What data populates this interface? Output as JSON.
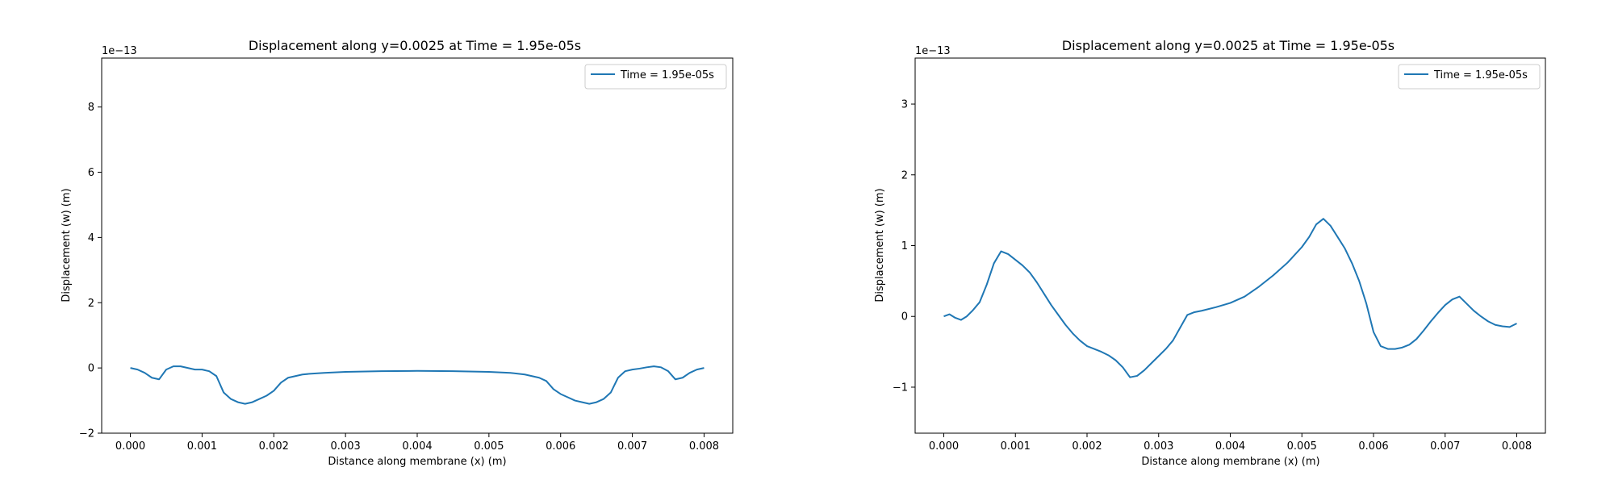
{
  "line_color": "#1f77b4",
  "chart_data": [
    {
      "type": "line",
      "title": "Displacement along y=0.0025 at Time = 1.95e-05s",
      "xlabel": "Distance along membrane (x) (m)",
      "ylabel": "Displacement (w) (m)",
      "y_offset_label": "1e−13",
      "xlim": [
        -0.0004,
        0.0084
      ],
      "ylim": [
        -2.0,
        9.5
      ],
      "xticks": [
        0.0,
        0.001,
        0.002,
        0.003,
        0.004,
        0.005,
        0.006,
        0.007,
        0.008
      ],
      "xtick_labels": [
        "0.000",
        "0.001",
        "0.002",
        "0.003",
        "0.004",
        "0.005",
        "0.006",
        "0.007",
        "0.008"
      ],
      "yticks": [
        -2,
        0,
        2,
        4,
        6,
        8
      ],
      "ytick_labels": [
        "−2",
        "0",
        "2",
        "4",
        "6",
        "8"
      ],
      "legend_position": "upper right",
      "series": [
        {
          "name": "Time = 1.95e-05s",
          "x": [
            0.0,
            0.0001,
            0.0002,
            0.0003,
            0.0004,
            0.0005,
            0.0006,
            0.0007,
            0.0008,
            0.0009,
            0.001,
            0.0011,
            0.0012,
            0.0013,
            0.0014,
            0.0015,
            0.0016,
            0.0017,
            0.0018,
            0.0019,
            0.002,
            0.0021,
            0.0022,
            0.0023,
            0.0024,
            0.0025,
            0.0027,
            0.003,
            0.0035,
            0.004,
            0.0045,
            0.005,
            0.0053,
            0.0055,
            0.0056,
            0.0057,
            0.0058,
            0.0059,
            0.006,
            0.0061,
            0.0062,
            0.0063,
            0.0064,
            0.0065,
            0.0066,
            0.0067,
            0.0068,
            0.0069,
            0.007,
            0.0071,
            0.0072,
            0.0073,
            0.0074,
            0.0075,
            0.0076,
            0.0077,
            0.0078,
            0.0079,
            0.008
          ],
          "y": [
            0.0,
            -0.05,
            -0.15,
            -0.3,
            -0.35,
            -0.05,
            0.05,
            0.05,
            0.0,
            -0.05,
            -0.05,
            -0.1,
            -0.25,
            -0.75,
            -0.95,
            -1.05,
            -1.1,
            -1.05,
            -0.95,
            -0.85,
            -0.7,
            -0.45,
            -0.3,
            -0.25,
            -0.2,
            -0.18,
            -0.15,
            -0.12,
            -0.1,
            -0.09,
            -0.1,
            -0.12,
            -0.15,
            -0.2,
            -0.25,
            -0.3,
            -0.4,
            -0.65,
            -0.8,
            -0.9,
            -1.0,
            -1.05,
            -1.1,
            -1.05,
            -0.95,
            -0.75,
            -0.3,
            -0.1,
            -0.05,
            -0.02,
            0.02,
            0.05,
            0.02,
            -0.1,
            -0.35,
            -0.3,
            -0.15,
            -0.05,
            0.0
          ]
        }
      ]
    },
    {
      "type": "line",
      "title": "Displacement along y=0.0025 at Time = 1.95e-05s",
      "xlabel": "Distance along membrane (x) (m)",
      "ylabel": "Displacement (w) (m)",
      "y_offset_label": "1e−13",
      "xlim": [
        -0.0004,
        0.0084
      ],
      "ylim": [
        -1.65,
        3.65
      ],
      "xticks": [
        0.0,
        0.001,
        0.002,
        0.003,
        0.004,
        0.005,
        0.006,
        0.007,
        0.008
      ],
      "xtick_labels": [
        "0.000",
        "0.001",
        "0.002",
        "0.003",
        "0.004",
        "0.005",
        "0.006",
        "0.007",
        "0.008"
      ],
      "yticks": [
        -1,
        0,
        1,
        2,
        3
      ],
      "ytick_labels": [
        "−1",
        "0",
        "1",
        "2",
        "3"
      ],
      "legend_position": "upper right",
      "series": [
        {
          "name": "Time = 1.95e-05s",
          "x": [
            0.0,
            8e-05,
            0.00016,
            0.00024,
            0.00032,
            0.0004,
            0.0005,
            0.0006,
            0.0007,
            0.0008,
            0.0009,
            0.001,
            0.0011,
            0.0012,
            0.0013,
            0.0014,
            0.0015,
            0.0016,
            0.0017,
            0.0018,
            0.0019,
            0.002,
            0.0021,
            0.0022,
            0.0023,
            0.0024,
            0.0025,
            0.0026,
            0.0027,
            0.0028,
            0.0029,
            0.003,
            0.0031,
            0.0032,
            0.0033,
            0.0034,
            0.0035,
            0.0036,
            0.0038,
            0.004,
            0.0042,
            0.0044,
            0.0046,
            0.0048,
            0.005,
            0.0051,
            0.0052,
            0.0053,
            0.0054,
            0.0055,
            0.0056,
            0.0057,
            0.0058,
            0.0059,
            0.006,
            0.0061,
            0.0062,
            0.0063,
            0.0064,
            0.0065,
            0.0066,
            0.0067,
            0.0068,
            0.0069,
            0.007,
            0.0071,
            0.0072,
            0.0073,
            0.0074,
            0.0075,
            0.0076,
            0.0077,
            0.0078,
            0.0079,
            0.008
          ],
          "y": [
            0.0,
            0.03,
            -0.02,
            -0.05,
            0.0,
            0.08,
            0.2,
            0.45,
            0.75,
            0.92,
            0.88,
            0.8,
            0.72,
            0.62,
            0.48,
            0.32,
            0.16,
            0.02,
            -0.12,
            -0.24,
            -0.34,
            -0.42,
            -0.46,
            -0.5,
            -0.55,
            -0.62,
            -0.72,
            -0.86,
            -0.84,
            -0.76,
            -0.66,
            -0.56,
            -0.46,
            -0.34,
            -0.16,
            0.02,
            0.06,
            0.08,
            0.13,
            0.19,
            0.28,
            0.42,
            0.58,
            0.76,
            0.98,
            1.12,
            1.3,
            1.38,
            1.28,
            1.12,
            0.96,
            0.75,
            0.5,
            0.18,
            -0.22,
            -0.42,
            -0.46,
            -0.46,
            -0.44,
            -0.4,
            -0.32,
            -0.2,
            -0.07,
            0.05,
            0.16,
            0.24,
            0.28,
            0.18,
            0.08,
            0.0,
            -0.07,
            -0.12,
            -0.14,
            -0.15,
            -0.1
          ]
        }
      ]
    }
  ]
}
